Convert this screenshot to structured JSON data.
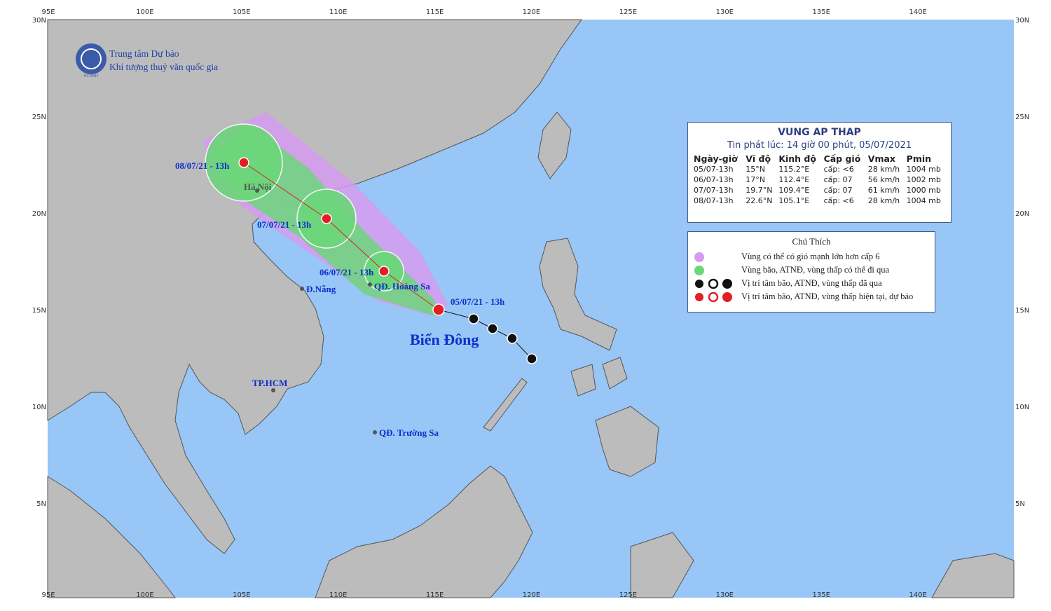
{
  "header": {
    "org_line1": "Trung tâm Dự báo",
    "org_line2": "Khí tượng thuỷ văn quốc gia",
    "logo_text": "NCHMF"
  },
  "axes": {
    "lon_labels": [
      "95E",
      "100E",
      "105E",
      "110E",
      "115E",
      "120E",
      "125E",
      "130E",
      "135E",
      "140E"
    ],
    "lat_labels": [
      "30N",
      "25N",
      "20N",
      "15N",
      "10N",
      "5N"
    ]
  },
  "track_labels": [
    "08/07/21 - 13h",
    "07/07/21 - 13h",
    "06/07/21 - 13h",
    "05/07/21 - 13h"
  ],
  "places": {
    "ha_noi": "Hà Nội",
    "da_nang": "Đ.Nẵng",
    "tp_hcm": "TP.HCM",
    "hoang_sa": "QĐ. Hoàng Sa",
    "truong_sa": "QĐ. Trường Sa",
    "bien_dong": "Biển Đông"
  },
  "bulletin": {
    "title": "VUNG AP THAP",
    "issued": "Tin phát lúc: 14 giờ 00 phút, 05/07/2021",
    "columns": [
      "Ngày-giờ",
      "Vĩ độ",
      "Kinh độ",
      "Cấp gió",
      "Vmax",
      "Pmin"
    ],
    "rows": [
      [
        "05/07-13h",
        "15°N",
        "115.2°E",
        "cấp: <6",
        "28 km/h",
        "1004 mb"
      ],
      [
        "06/07-13h",
        "17°N",
        "112.4°E",
        "cấp: 07",
        "56 km/h",
        "1002 mb"
      ],
      [
        "07/07-13h",
        "19.7°N",
        "109.4°E",
        "cấp: 07",
        "61 km/h",
        "1000 mb"
      ],
      [
        "08/07-13h",
        "22.6°N",
        "105.1°E",
        "cấp: <6",
        "28 km/h",
        "1004 mb"
      ]
    ]
  },
  "legend": {
    "title": "Chú Thích",
    "items": [
      "Vùng có thể có gió mạnh lớn hơn cấp 6",
      "Vùng bão, ATNĐ, vùng thấp có thể đi qua",
      "Vị trí tâm bão, ATNĐ, vùng thấp đã qua",
      "Vị trí tâm bão, ATNĐ, vùng thấp hiện tại, dự báo"
    ]
  }
}
